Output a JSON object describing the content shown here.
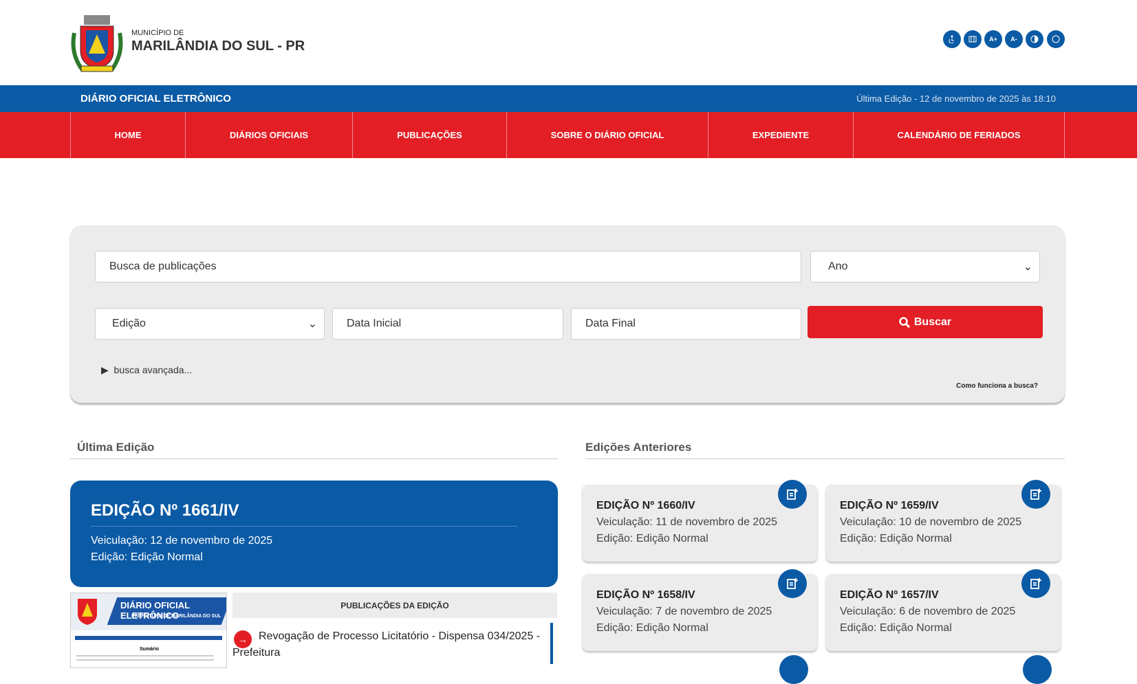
{
  "header": {
    "municipality_prefix": "MUNICÍPIO DE",
    "municipality": "MARILÂNDIA DO SUL - PR",
    "accessibility": [
      "A+",
      "A-"
    ]
  },
  "bar": {
    "title": "DIÁRIO OFICIAL ELETRÔNICO",
    "last_edition": "Última Edição - 12 de novembro de 2025 às 18:10"
  },
  "nav": [
    "HOME",
    "DIÁRIOS OFICIAIS",
    "PUBLICAÇÕES",
    "SOBRE O DIÁRIO OFICIAL",
    "EXPEDIENTE",
    "CALENDÁRIO DE FERIADOS"
  ],
  "search": {
    "query_placeholder": "Busca de publicações",
    "year": "Ano",
    "edition": "Edição",
    "start_date": "Data Inicial",
    "end_date": "Data Final",
    "button": "Buscar",
    "advanced": "busca avançada...",
    "help": "Como funciona a busca?"
  },
  "latest": {
    "heading": "Última Edição",
    "title": "EDIÇÃO Nº 1661/IV",
    "date": "Veiculação: 12 de novembro de 2025",
    "kind": "Edição: Edição Normal",
    "thumb_title": "DIÁRIO OFICIAL ELETRÔNICO",
    "thumb_subtitle": "PREFEITURA DE MARILÂNDIA DO SUL",
    "thumb_summary": "Sumário",
    "publications_heading": "PUBLICAÇÕES DA EDIÇÃO",
    "publications": [
      "Revogação de Processo Licitatório - Dispensa 034/2025 - Prefeitura"
    ]
  },
  "previous": {
    "heading": "Edições Anteriores",
    "editions": [
      {
        "title": "EDIÇÃO Nº 1660/IV",
        "date": "Veiculação: 11 de novembro de 2025",
        "kind": "Edição: Edição Normal"
      },
      {
        "title": "EDIÇÃO Nº 1659/IV",
        "date": "Veiculação: 10 de novembro de 2025",
        "kind": "Edição: Edição Normal"
      },
      {
        "title": "EDIÇÃO Nº 1658/IV",
        "date": "Veiculação: 7 de novembro de 2025",
        "kind": "Edição: Edição Normal"
      },
      {
        "title": "EDIÇÃO Nº 1657/IV",
        "date": "Veiculação: 6 de novembro de 2025",
        "kind": "Edição: Edição Normal"
      }
    ]
  }
}
